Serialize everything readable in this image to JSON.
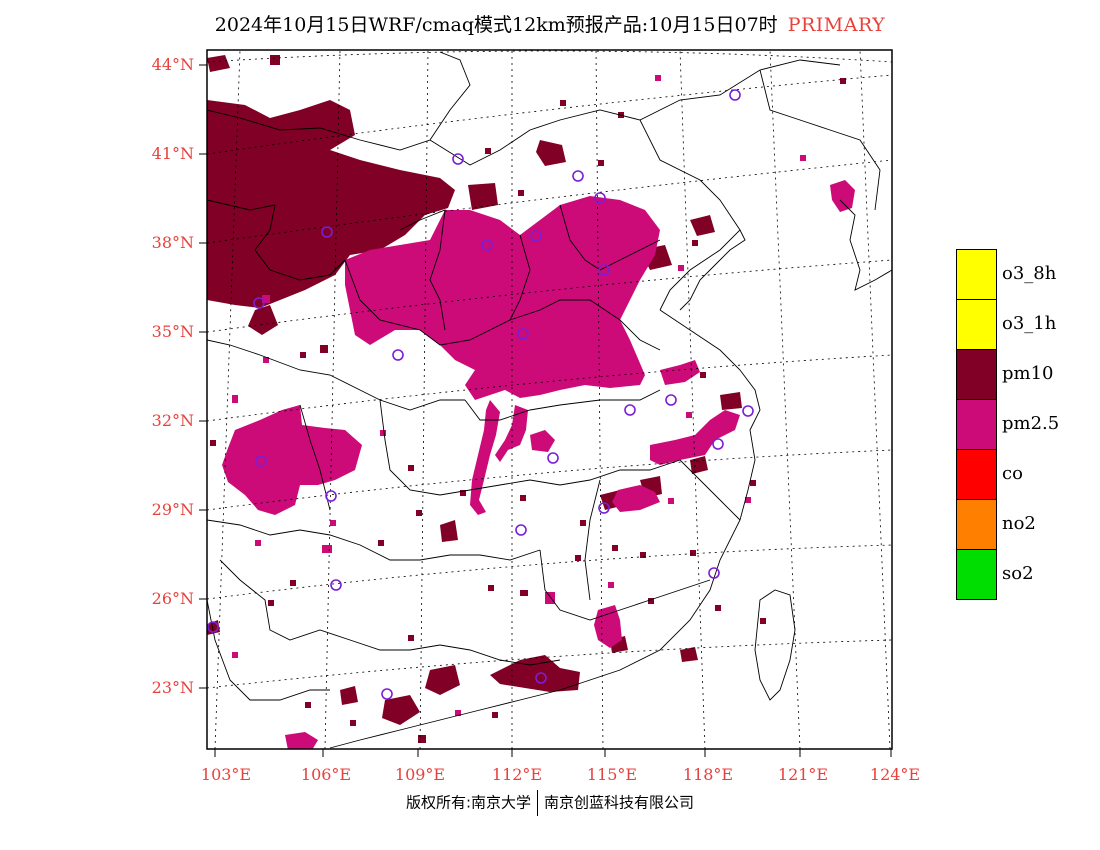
{
  "title": {
    "text": "2024年10月15日WRF/cmaq模式12km预报产品:10月15日07时",
    "badge": "PRIMARY"
  },
  "axes": {
    "lat_labels": [
      "44°N",
      "41°N",
      "38°N",
      "35°N",
      "32°N",
      "29°N",
      "26°N",
      "23°N"
    ],
    "lon_labels": [
      "103°E",
      "106°E",
      "109°E",
      "112°E",
      "115°E",
      "118°E",
      "121°E",
      "124°E"
    ],
    "lat_range": [
      21.0,
      44.5
    ],
    "lon_range": [
      102.7,
      124.0
    ]
  },
  "legend": {
    "items": [
      {
        "label": "o3_8h",
        "color": "#ffff00"
      },
      {
        "label": "o3_1h",
        "color": "#ffff00"
      },
      {
        "label": "pm10",
        "color": "#800026"
      },
      {
        "label": "pm2.5",
        "color": "#cc0a78"
      },
      {
        "label": "co",
        "color": "#ff0000"
      },
      {
        "label": "no2",
        "color": "#ff7f00"
      },
      {
        "label": "so2",
        "color": "#00dd00"
      }
    ]
  },
  "colors": {
    "pm10": "#800026",
    "pm25": "#cc0a78",
    "station": "#7a1fd6",
    "axis_label": "#e8413c"
  },
  "footer": {
    "left": "版权所有:南京大学",
    "right": "南京创蓝科技有限公司"
  }
}
